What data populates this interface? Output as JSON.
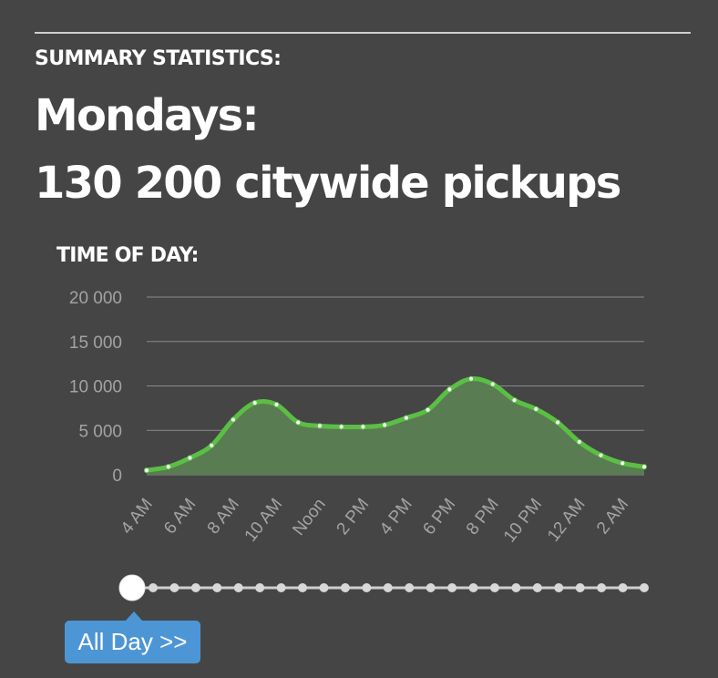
{
  "summary": {
    "label": "SUMMARY STATISTICS:",
    "day_line": "Mondays:",
    "total_line": "130 200 citywide pickups"
  },
  "time_of_day": {
    "label": "TIME OF DAY:"
  },
  "slider": {
    "stops": 25,
    "selected_index": 0,
    "tooltip": "All Day >>"
  },
  "colors": {
    "background": "#454545",
    "line": "#5abf44",
    "area": "#5a7c52",
    "grid": "#8a8a8a",
    "axis_text": "#a3a3a3",
    "tooltip": "#4d96d6"
  },
  "chart_data": {
    "type": "area",
    "title": "",
    "xlabel": "",
    "ylabel": "",
    "ylim": [
      0,
      20000
    ],
    "y_ticks": [
      "20 000",
      "15 000",
      "10 000",
      "5 000",
      "0"
    ],
    "y_tick_values": [
      20000,
      15000,
      10000,
      5000,
      0
    ],
    "x_tick_labels": [
      "4 AM",
      "6 AM",
      "8 AM",
      "10 AM",
      "Noon",
      "2 PM",
      "4 PM",
      "6 PM",
      "8 PM",
      "10 PM",
      "12 AM",
      "2 AM"
    ],
    "hours": [
      "4 AM",
      "5 AM",
      "6 AM",
      "7 AM",
      "8 AM",
      "9 AM",
      "10 AM",
      "11 AM",
      "Noon",
      "1 PM",
      "2 PM",
      "3 PM",
      "4 PM",
      "5 PM",
      "6 PM",
      "7 PM",
      "8 PM",
      "9 PM",
      "10 PM",
      "11 PM",
      "12 AM",
      "1 AM",
      "2 AM",
      "3 AM"
    ],
    "values": [
      500,
      900,
      1900,
      3300,
      6200,
      8100,
      7900,
      5900,
      5500,
      5400,
      5400,
      5600,
      6400,
      7300,
      9600,
      10800,
      10200,
      8400,
      7400,
      5900,
      3700,
      2200,
      1300,
      900
    ],
    "grid": true,
    "legend": "none"
  }
}
